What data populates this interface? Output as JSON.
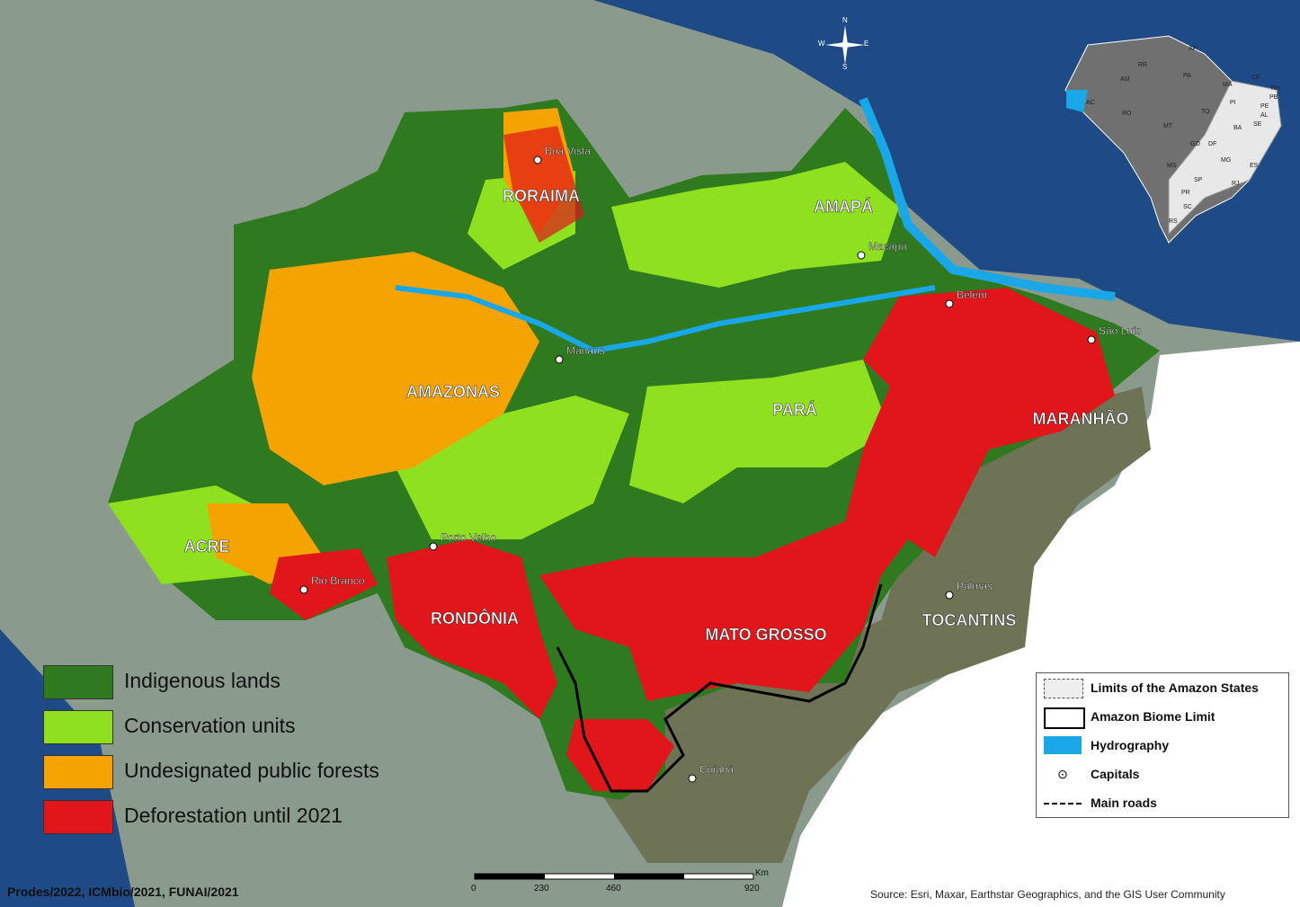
{
  "legend": {
    "items": [
      {
        "label": "Indigenous lands",
        "color": "#2f7a1f"
      },
      {
        "label": "Conservation units",
        "color": "#8fe01f"
      },
      {
        "label": "Undesignated public forests",
        "color": "#f5a300"
      },
      {
        "label": "Deforestation until 2021",
        "color": "#e0161a"
      }
    ]
  },
  "legend_box": {
    "items": [
      {
        "label": "Limits of the Amazon States",
        "icon": "dashed-box-icon"
      },
      {
        "label": "Amazon Biome Limit",
        "icon": "black-outline-box-icon"
      },
      {
        "label": "Hydrography",
        "icon": "blue-fill-icon"
      },
      {
        "label": "Capitals",
        "icon": "dot-in-circle-icon"
      },
      {
        "label": "Main roads",
        "icon": "dash-dot-line-icon"
      }
    ]
  },
  "states": [
    {
      "name": "RORAIMA"
    },
    {
      "name": "AMAPÁ"
    },
    {
      "name": "AMAZONAS"
    },
    {
      "name": "PARÁ"
    },
    {
      "name": "MARANHÃO"
    },
    {
      "name": "ACRE"
    },
    {
      "name": "RONDÔNIA"
    },
    {
      "name": "MATO GROSSO"
    },
    {
      "name": "TOCANTINS"
    }
  ],
  "capitals": [
    {
      "name": "Boa Vista"
    },
    {
      "name": "Macapá"
    },
    {
      "name": "Belém"
    },
    {
      "name": "São Luís"
    },
    {
      "name": "Manaus"
    },
    {
      "name": "Porto Velho"
    },
    {
      "name": "Rio Branco"
    },
    {
      "name": "Palmas"
    },
    {
      "name": "Cuiabá"
    }
  ],
  "inset_states": [
    "RR",
    "AP",
    "AM",
    "PA",
    "MA",
    "CE",
    "RN",
    "PB",
    "PE",
    "AL",
    "SE",
    "AC",
    "RO",
    "TO",
    "PI",
    "BA",
    "MT",
    "GO",
    "DF",
    "MG",
    "ES",
    "MS",
    "SP",
    "RJ",
    "PR",
    "SC",
    "RS"
  ],
  "compass": {
    "n": "N",
    "s": "S",
    "e": "E",
    "w": "W"
  },
  "scale": {
    "unit": "Km",
    "ticks": [
      "0",
      "230",
      "460",
      "920"
    ]
  },
  "credits": "Prodes/2022, ICMbio/2021, FUNAI/2021",
  "source": "Source: Esri, Maxar, Earthstar Geographics, and the GIS User Community",
  "colors": {
    "ocean": "#1e4a86",
    "land_bg": "#8a9a8c",
    "brazil_outside": "#ffffff",
    "savanna": "#6f7355",
    "hydrography": "#1aa7e8"
  }
}
